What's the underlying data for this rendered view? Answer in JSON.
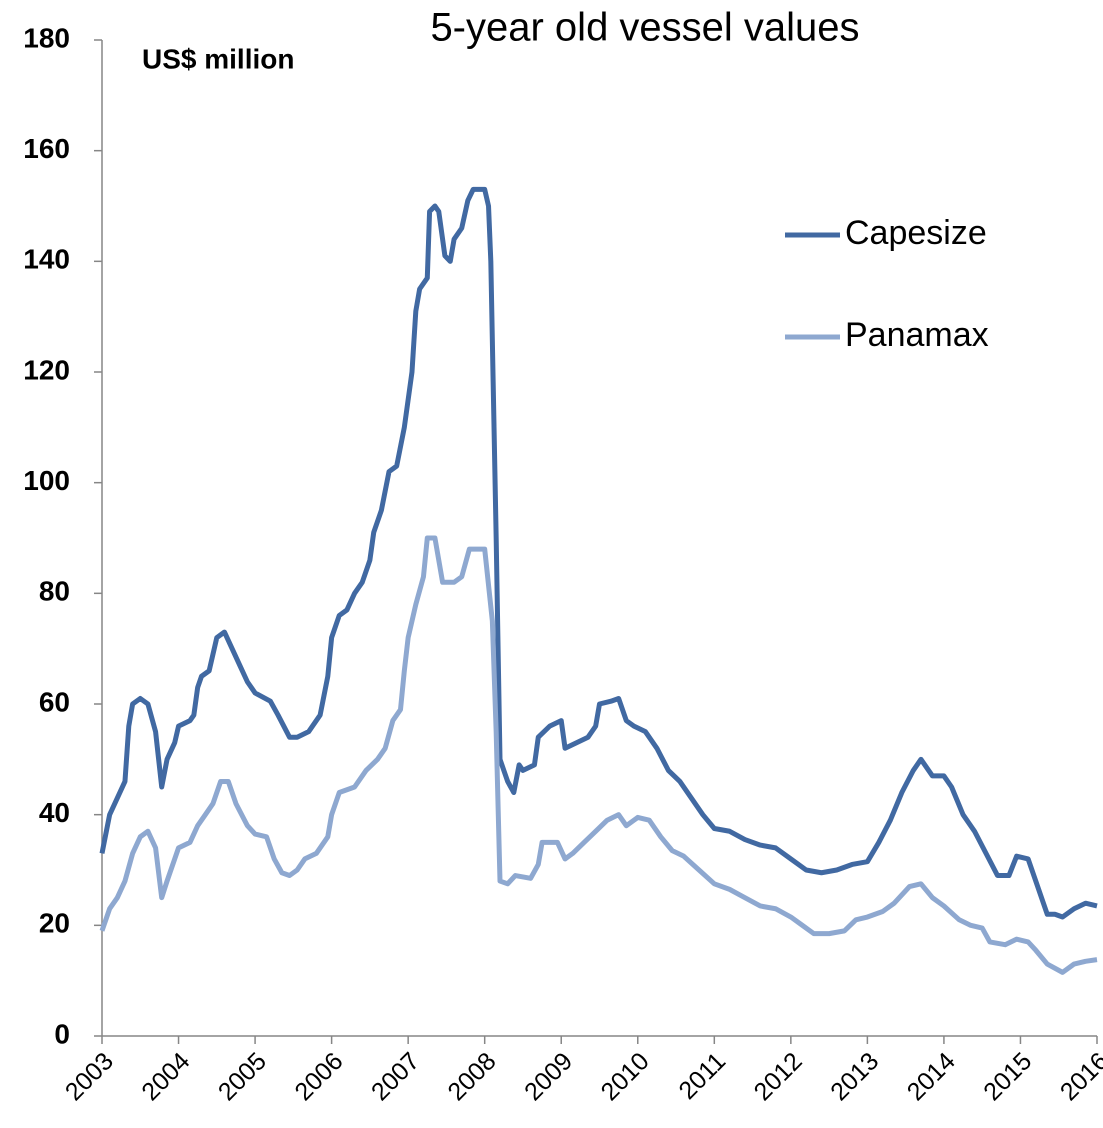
{
  "chart_data": {
    "type": "line",
    "title": "5-year old vessel values",
    "y_label": "US$ million",
    "xlim": [
      2003,
      2016
    ],
    "xticks": [
      2003,
      2004,
      2005,
      2006,
      2007,
      2008,
      2009,
      2010,
      2011,
      2012,
      2013,
      2014,
      2015,
      2016
    ],
    "ylim": [
      0,
      180
    ],
    "yticks": [
      0,
      20,
      40,
      60,
      80,
      100,
      120,
      140,
      160,
      180
    ],
    "grid": false,
    "legend": "upper right",
    "series": [
      {
        "name": "Capesize",
        "color": "#4169a2",
        "x": [
          2003.0,
          2003.1,
          2003.2,
          2003.3,
          2003.35,
          2003.4,
          2003.5,
          2003.6,
          2003.7,
          2003.78,
          2003.85,
          2003.95,
          2004.0,
          2004.15,
          2004.2,
          2004.25,
          2004.3,
          2004.4,
          2004.5,
          2004.6,
          2004.7,
          2004.8,
          2004.9,
          2005.0,
          2005.2,
          2005.3,
          2005.45,
          2005.55,
          2005.7,
          2005.85,
          2005.95,
          2006.0,
          2006.1,
          2006.2,
          2006.3,
          2006.4,
          2006.5,
          2006.55,
          2006.65,
          2006.75,
          2006.85,
          2006.95,
          2007.05,
          2007.1,
          2007.15,
          2007.25,
          2007.28,
          2007.35,
          2007.4,
          2007.48,
          2007.55,
          2007.6,
          2007.7,
          2007.78,
          2007.85,
          2008.0,
          2008.05,
          2008.08,
          2008.15,
          2008.2,
          2008.3,
          2008.38,
          2008.45,
          2008.5,
          2008.65,
          2008.7,
          2008.85,
          2009.0,
          2009.05,
          2009.2,
          2009.35,
          2009.45,
          2009.5,
          2009.65,
          2009.75,
          2009.85,
          2009.95,
          2010.1,
          2010.25,
          2010.4,
          2010.55,
          2010.7,
          2010.85,
          2011.0,
          2011.2,
          2011.4,
          2011.6,
          2011.8,
          2012.0,
          2012.2,
          2012.4,
          2012.6,
          2012.8,
          2013.0,
          2013.15,
          2013.3,
          2013.45,
          2013.6,
          2013.7,
          2013.85,
          2014.0,
          2014.1,
          2014.25,
          2014.4,
          2014.55,
          2014.7,
          2014.85,
          2014.95,
          2015.1,
          2015.2,
          2015.35,
          2015.45,
          2015.55,
          2015.7,
          2015.85,
          2016.0
        ],
        "values": [
          33,
          40,
          43,
          46,
          56,
          60,
          61,
          60,
          55,
          45,
          50,
          53,
          56,
          57,
          58,
          63,
          65,
          66,
          72,
          73,
          70,
          67,
          64,
          62,
          60.5,
          58,
          54,
          54,
          55,
          58,
          65,
          72,
          76,
          77,
          80,
          82,
          86,
          91,
          95,
          102,
          103,
          110,
          120,
          131,
          135,
          137,
          149,
          150,
          149,
          141,
          140,
          144,
          146,
          151,
          153,
          153,
          150,
          140,
          90,
          50,
          46,
          44,
          49,
          48,
          49,
          54,
          56,
          57,
          52,
          53,
          54,
          56,
          60,
          60.5,
          61,
          57,
          56,
          55,
          52,
          48,
          46,
          43,
          40,
          37.5,
          37,
          35.5,
          34.5,
          34,
          32,
          30,
          29.5,
          30,
          31,
          31.5,
          35,
          39,
          44,
          48,
          50,
          47,
          47,
          45,
          40,
          37,
          33,
          29,
          29,
          32.5,
          32,
          28,
          22,
          22,
          21.5,
          23,
          24,
          23.5
        ]
      },
      {
        "name": "Panamax",
        "color": "#8ea8d0",
        "x": [
          2003.0,
          2003.1,
          2003.2,
          2003.3,
          2003.4,
          2003.5,
          2003.6,
          2003.7,
          2003.78,
          2003.85,
          2003.95,
          2004.0,
          2004.15,
          2004.25,
          2004.35,
          2004.45,
          2004.55,
          2004.65,
          2004.75,
          2004.9,
          2005.0,
          2005.15,
          2005.25,
          2005.35,
          2005.45,
          2005.55,
          2005.65,
          2005.8,
          2005.95,
          2006.0,
          2006.1,
          2006.3,
          2006.45,
          2006.6,
          2006.7,
          2006.8,
          2006.9,
          2006.95,
          2007.0,
          2007.1,
          2007.2,
          2007.25,
          2007.35,
          2007.45,
          2007.6,
          2007.7,
          2007.8,
          2008.0,
          2008.1,
          2008.15,
          2008.2,
          2008.3,
          2008.4,
          2008.6,
          2008.7,
          2008.75,
          2008.95,
          2009.05,
          2009.15,
          2009.3,
          2009.45,
          2009.6,
          2009.75,
          2009.85,
          2010.0,
          2010.15,
          2010.3,
          2010.45,
          2010.6,
          2010.8,
          2011.0,
          2011.2,
          2011.4,
          2011.6,
          2011.8,
          2012.0,
          2012.15,
          2012.3,
          2012.5,
          2012.7,
          2012.85,
          2013.0,
          2013.2,
          2013.35,
          2013.55,
          2013.7,
          2013.85,
          2014.0,
          2014.2,
          2014.35,
          2014.5,
          2014.6,
          2014.8,
          2014.95,
          2015.1,
          2015.2,
          2015.35,
          2015.55,
          2015.7,
          2015.85,
          2016.0
        ],
        "values": [
          19,
          23,
          25,
          28,
          33,
          36,
          37,
          34,
          25,
          28,
          32,
          34,
          35,
          38,
          40,
          42,
          46,
          46,
          42,
          38,
          36.5,
          36,
          32,
          29.5,
          29,
          30,
          32,
          33,
          36,
          40,
          44,
          45,
          48,
          50,
          52,
          57,
          59,
          66,
          72,
          78,
          83,
          90,
          90,
          82,
          82,
          83,
          88,
          88,
          75,
          55,
          28,
          27.5,
          29,
          28.5,
          31,
          35,
          35,
          32,
          33,
          35,
          37,
          39,
          40,
          38,
          39.5,
          39,
          36,
          33.5,
          32.5,
          30,
          27.5,
          26.5,
          25,
          23.5,
          23,
          21.5,
          20,
          18.5,
          18.5,
          19,
          21,
          21.5,
          22.5,
          24,
          27,
          27.5,
          25,
          23.5,
          21,
          20,
          19.5,
          17,
          16.5,
          17.5,
          17,
          15.5,
          13,
          11.5,
          13,
          13.5,
          13.8
        ]
      }
    ]
  }
}
